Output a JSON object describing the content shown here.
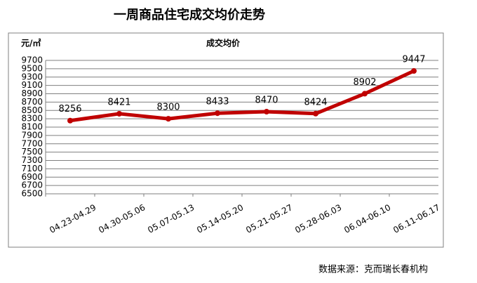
{
  "chart_data": {
    "type": "line",
    "title": "一周商品住宅成交均价走势",
    "y_axis_label": "元/㎡",
    "source": "数据来源：克而瑞长春机构",
    "categories": [
      "04.23-04.29",
      "04.30-05.06",
      "05.07-05.13",
      "05.14-05.20",
      "05.21-05.27",
      "05.28-06.03",
      "06.04-06.10",
      "06.11-06.17"
    ],
    "series": [
      {
        "name": "成交均价",
        "color": "#c00000",
        "values": [
          8256,
          8421,
          8300,
          8433,
          8470,
          8424,
          8902,
          9447
        ]
      }
    ],
    "ylim": [
      6500,
      9700
    ],
    "yticks": [
      6500,
      6700,
      6900,
      7100,
      7300,
      7500,
      7700,
      7900,
      8100,
      8300,
      8500,
      8700,
      8900,
      9100,
      9300,
      9500,
      9700
    ],
    "grid": true
  }
}
